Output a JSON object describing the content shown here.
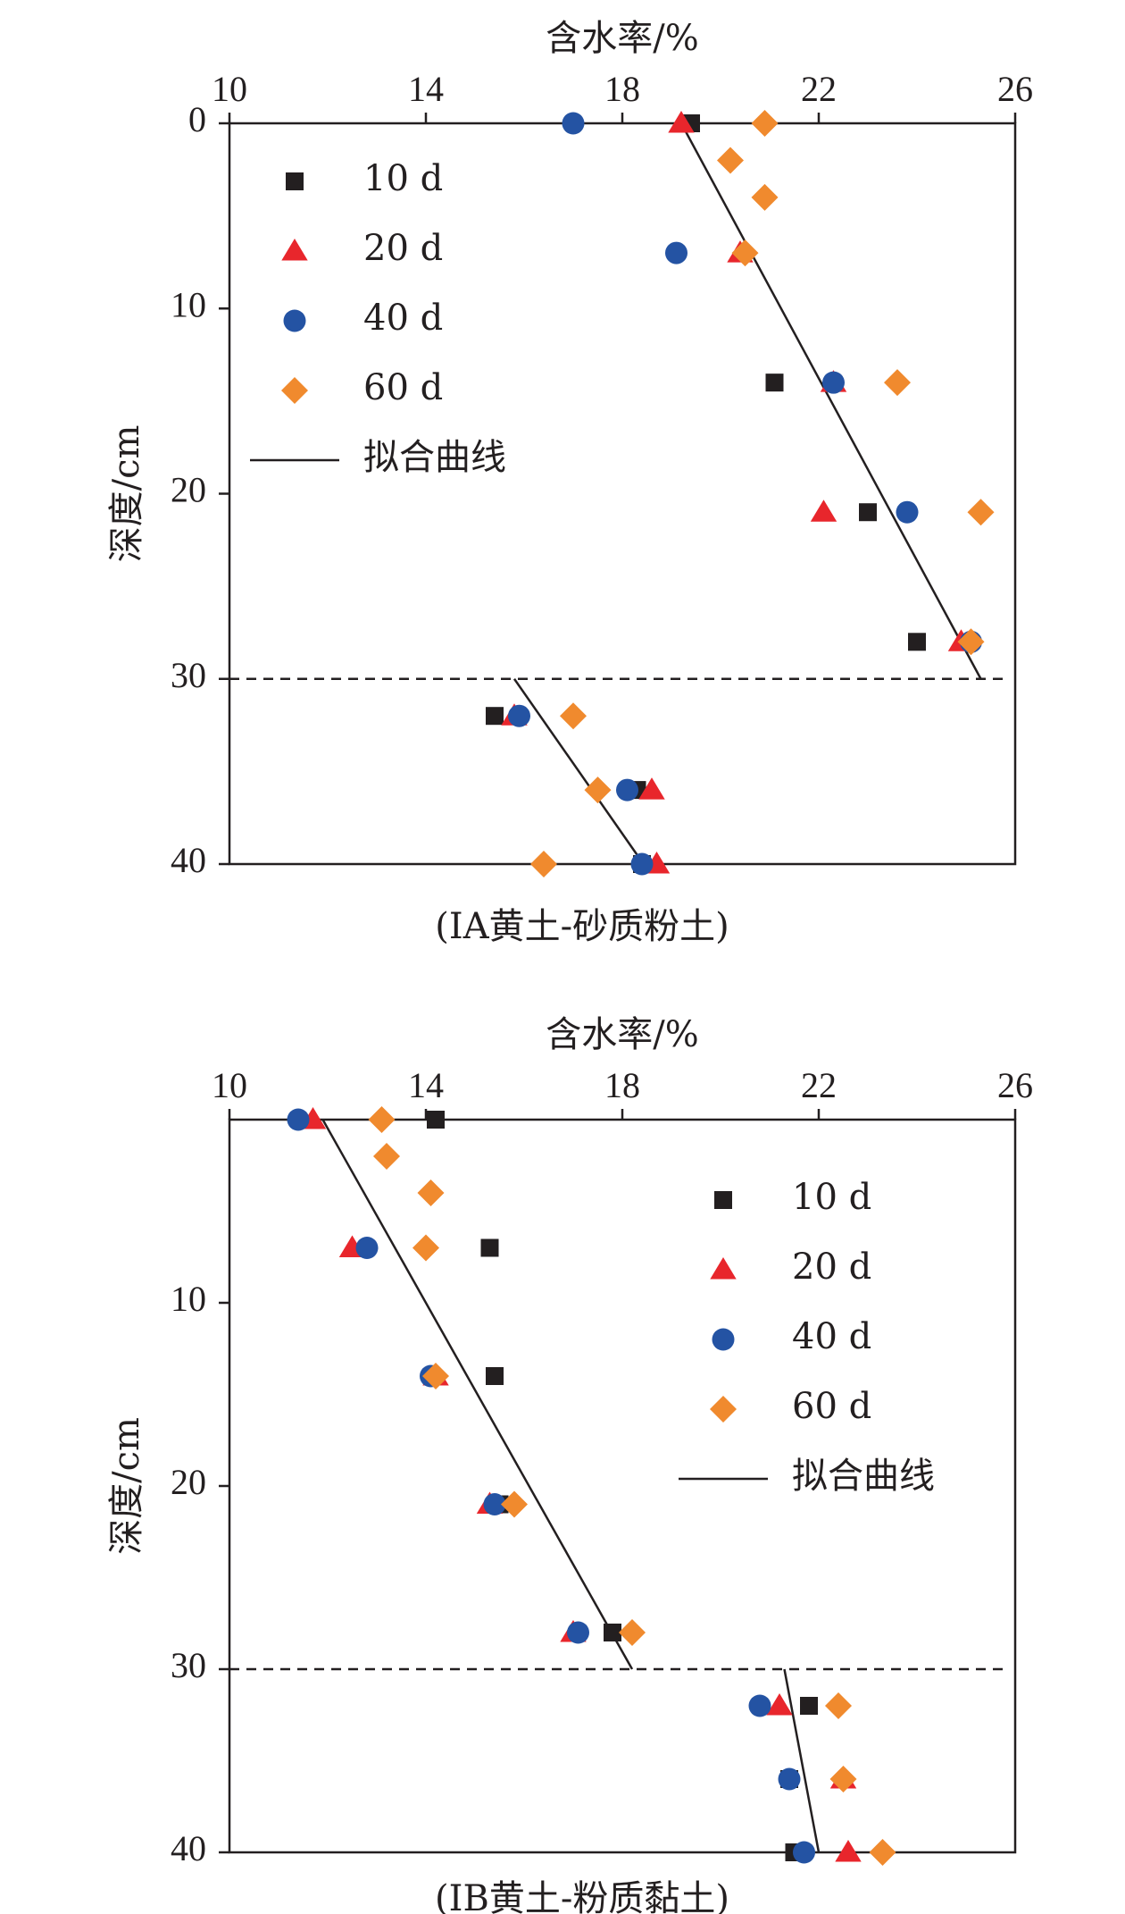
{
  "colors": {
    "axis": "#231f20",
    "series_10d": "#231f20",
    "series_20d": "#e8262c",
    "series_40d": "#2453a3",
    "series_60d": "#f08a2e",
    "fit": "#231f20",
    "boundary": "#231f20"
  },
  "chart_data": [
    {
      "type": "scatter",
      "title": "(IA黄土-砂质粉土)",
      "xlabel": "含水率/%",
      "ylabel": "深度/cm",
      "xlim": [
        10,
        26
      ],
      "ylim": [
        0,
        40
      ],
      "y_inverted": true,
      "x_axis_position": "top",
      "x_ticks": [
        10,
        14,
        18,
        22,
        26
      ],
      "y_ticks": [
        0,
        10,
        20,
        30,
        40
      ],
      "legend_position": "top-left",
      "boundary_depth": 30,
      "series": [
        {
          "name": "10 d",
          "marker": "square",
          "color": "#231f20",
          "points": [
            [
              19.4,
              0
            ],
            [
              21.1,
              14
            ],
            [
              23.0,
              21
            ],
            [
              24.0,
              28
            ],
            [
              15.4,
              32
            ],
            [
              18.3,
              36
            ],
            [
              18.4,
              40
            ]
          ]
        },
        {
          "name": "20 d",
          "marker": "triangle",
          "color": "#e8262c",
          "points": [
            [
              19.2,
              0
            ],
            [
              20.4,
              7
            ],
            [
              22.3,
              14
            ],
            [
              22.1,
              21
            ],
            [
              24.9,
              28
            ],
            [
              15.8,
              32
            ],
            [
              18.6,
              36
            ],
            [
              18.7,
              40
            ]
          ]
        },
        {
          "name": "40 d",
          "marker": "circle",
          "color": "#2453a3",
          "points": [
            [
              17.0,
              0
            ],
            [
              19.1,
              7
            ],
            [
              22.3,
              14
            ],
            [
              23.8,
              21
            ],
            [
              25.1,
              28
            ],
            [
              15.9,
              32
            ],
            [
              18.1,
              36
            ],
            [
              18.4,
              40
            ]
          ]
        },
        {
          "name": "60 d",
          "marker": "diamond",
          "color": "#f08a2e",
          "points": [
            [
              20.9,
              0
            ],
            [
              20.2,
              2
            ],
            [
              20.9,
              4
            ],
            [
              20.5,
              7
            ],
            [
              23.6,
              14
            ],
            [
              25.3,
              21
            ],
            [
              25.1,
              28
            ],
            [
              17.0,
              32
            ],
            [
              17.5,
              36
            ],
            [
              16.4,
              40
            ]
          ]
        }
      ],
      "fit_lines": [
        {
          "points": [
            [
              19.2,
              0
            ],
            [
              25.3,
              30
            ]
          ]
        },
        {
          "points": [
            [
              15.8,
              30
            ],
            [
              18.3,
              39.5
            ]
          ]
        }
      ],
      "legend_fit_label": "拟合曲线"
    },
    {
      "type": "scatter",
      "title": "(IB黄土-粉质黏土)",
      "xlabel": "含水率/%",
      "ylabel": "深度/cm",
      "xlim": [
        10,
        26
      ],
      "ylim": [
        0,
        40
      ],
      "y_inverted": true,
      "x_axis_position": "top",
      "x_ticks": [
        10,
        14,
        18,
        22,
        26
      ],
      "y_ticks": [
        10,
        20,
        30,
        40
      ],
      "legend_position": "top-right",
      "boundary_depth": 30,
      "series": [
        {
          "name": "10 d",
          "marker": "square",
          "color": "#231f20",
          "points": [
            [
              14.2,
              0
            ],
            [
              15.3,
              7
            ],
            [
              15.4,
              14
            ],
            [
              15.5,
              21
            ],
            [
              17.8,
              28
            ],
            [
              21.8,
              32
            ],
            [
              21.4,
              36
            ],
            [
              21.5,
              40
            ]
          ]
        },
        {
          "name": "20 d",
          "marker": "triangle",
          "color": "#e8262c",
          "points": [
            [
              11.7,
              0
            ],
            [
              12.5,
              7
            ],
            [
              14.2,
              14
            ],
            [
              15.3,
              21
            ],
            [
              17.0,
              28
            ],
            [
              21.2,
              32
            ],
            [
              22.5,
              36
            ],
            [
              22.6,
              40
            ]
          ]
        },
        {
          "name": "40 d",
          "marker": "circle",
          "color": "#2453a3",
          "points": [
            [
              11.4,
              0
            ],
            [
              12.8,
              7
            ],
            [
              14.1,
              14
            ],
            [
              15.4,
              21
            ],
            [
              17.1,
              28
            ],
            [
              20.8,
              32
            ],
            [
              21.4,
              36
            ],
            [
              21.7,
              40
            ]
          ]
        },
        {
          "name": "60 d",
          "marker": "diamond",
          "color": "#f08a2e",
          "points": [
            [
              13.1,
              0
            ],
            [
              13.2,
              2
            ],
            [
              14.1,
              4
            ],
            [
              14.0,
              7
            ],
            [
              14.2,
              14
            ],
            [
              15.8,
              21
            ],
            [
              18.2,
              28
            ],
            [
              22.4,
              32
            ],
            [
              22.5,
              36
            ],
            [
              23.3,
              40
            ]
          ]
        }
      ],
      "fit_lines": [
        {
          "points": [
            [
              11.9,
              0
            ],
            [
              18.2,
              30
            ]
          ]
        },
        {
          "points": [
            [
              21.3,
              30
            ],
            [
              22.0,
              40
            ]
          ]
        }
      ],
      "legend_fit_label": "拟合曲线"
    }
  ]
}
